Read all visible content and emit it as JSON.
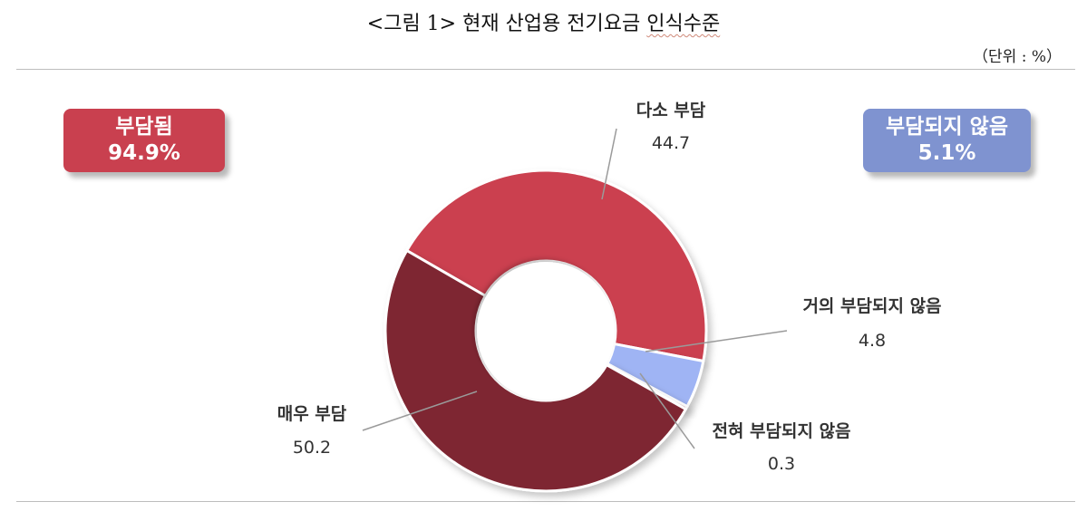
{
  "header": {
    "title_prefix": "<그림 1> 현재 산업용 전기요금 ",
    "title_emphasis": "인식수준",
    "unit": "（단위 : %）"
  },
  "summary": {
    "burden": {
      "label": "부담됨",
      "value": "94.9%",
      "color": "#c9404f"
    },
    "no_burden": {
      "label": "부담되지 않음",
      "value": "5.1%",
      "color": "#7f93d0"
    }
  },
  "chart_data": {
    "type": "pie",
    "donut": true,
    "start_angle_deg": -60,
    "categories": [
      "다소 부담",
      "거의 부담되지 않음",
      "전혀 부담되지 않음",
      "매우 부담"
    ],
    "values": [
      44.7,
      4.8,
      0.3,
      50.2
    ],
    "value_labels": [
      "44.7",
      "4.8",
      "0.3",
      "50.2"
    ],
    "colors": [
      "#cb404f",
      "#9fb4f4",
      "#7e2631",
      "#7e2631"
    ],
    "unit": "%"
  }
}
